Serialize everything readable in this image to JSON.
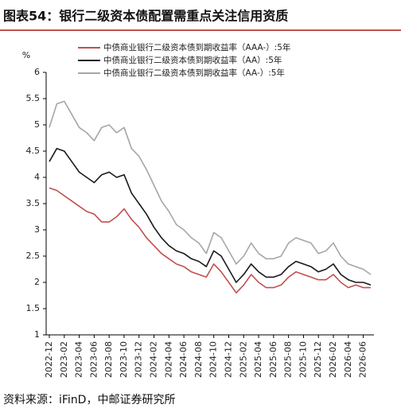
{
  "chart_data": {
    "type": "line",
    "title": "图表54：银行二级资本债配置需重点关注信用资质",
    "y_unit": "%",
    "source": "资料来源：iFinD，中邮证券研究所",
    "categories": [
      "2022-12",
      null,
      "2023-02",
      null,
      "2023-04",
      null,
      "2023-06",
      null,
      "2023-08",
      null,
      "2023-10",
      null,
      "2023-12",
      null,
      "2024-02",
      null,
      "2024-04",
      null,
      "2024-06",
      null,
      "2024-08",
      null,
      "2024-10",
      null,
      "2024-12",
      null,
      "2025-02",
      null,
      "2025-04",
      null,
      "2025-06",
      null,
      "2025-08",
      null,
      "2025-10",
      null,
      "2025-12",
      null,
      "2026-02",
      null,
      "2026-04",
      null,
      "2026-06",
      null
    ],
    "series": [
      {
        "name": "中债商业银行二级资本债到期收益率（AAA-）:5年",
        "color": "#c0504d",
        "values": [
          3.8,
          3.75,
          3.65,
          3.55,
          3.45,
          3.35,
          3.3,
          3.15,
          3.15,
          3.25,
          3.4,
          3.2,
          3.05,
          2.85,
          2.7,
          2.55,
          2.45,
          2.35,
          2.3,
          2.2,
          2.15,
          2.1,
          2.35,
          2.2,
          2.0,
          1.8,
          1.95,
          2.15,
          2.0,
          1.9,
          1.9,
          1.95,
          2.1,
          2.2,
          2.15,
          2.1,
          2.05,
          2.05,
          2.15,
          2.0,
          1.9,
          1.95,
          1.9,
          1.9
        ]
      },
      {
        "name": "中债商业银行二级资本债到期收益率（AA）:5年",
        "color": "#1a1a1a",
        "values": [
          4.3,
          4.55,
          4.5,
          4.3,
          4.1,
          4.0,
          3.9,
          4.05,
          4.1,
          4.0,
          4.05,
          3.7,
          3.5,
          3.3,
          3.05,
          2.85,
          2.7,
          2.6,
          2.55,
          2.45,
          2.4,
          2.3,
          2.6,
          2.5,
          2.25,
          2.0,
          2.15,
          2.35,
          2.2,
          2.1,
          2.1,
          2.15,
          2.3,
          2.4,
          2.35,
          2.3,
          2.2,
          2.25,
          2.35,
          2.15,
          2.05,
          2.0,
          2.0,
          1.95
        ]
      },
      {
        "name": "中债商业银行二级资本债到期收益率（AA-）:5年",
        "color": "#a6a6a6",
        "values": [
          4.95,
          5.4,
          5.45,
          5.2,
          4.95,
          4.85,
          4.7,
          4.95,
          5.0,
          4.85,
          4.95,
          4.55,
          4.4,
          4.15,
          3.85,
          3.55,
          3.35,
          3.1,
          3.0,
          2.85,
          2.75,
          2.55,
          2.95,
          2.85,
          2.6,
          2.35,
          2.5,
          2.75,
          2.55,
          2.45,
          2.45,
          2.5,
          2.75,
          2.85,
          2.8,
          2.75,
          2.55,
          2.6,
          2.75,
          2.5,
          2.35,
          2.3,
          2.25,
          2.15
        ]
      }
    ],
    "ylim": [
      1,
      6
    ],
    "yticks": [
      1,
      1.5,
      2,
      2.5,
      3,
      3.5,
      4,
      4.5,
      5,
      5.5,
      6
    ],
    "grid": false
  }
}
